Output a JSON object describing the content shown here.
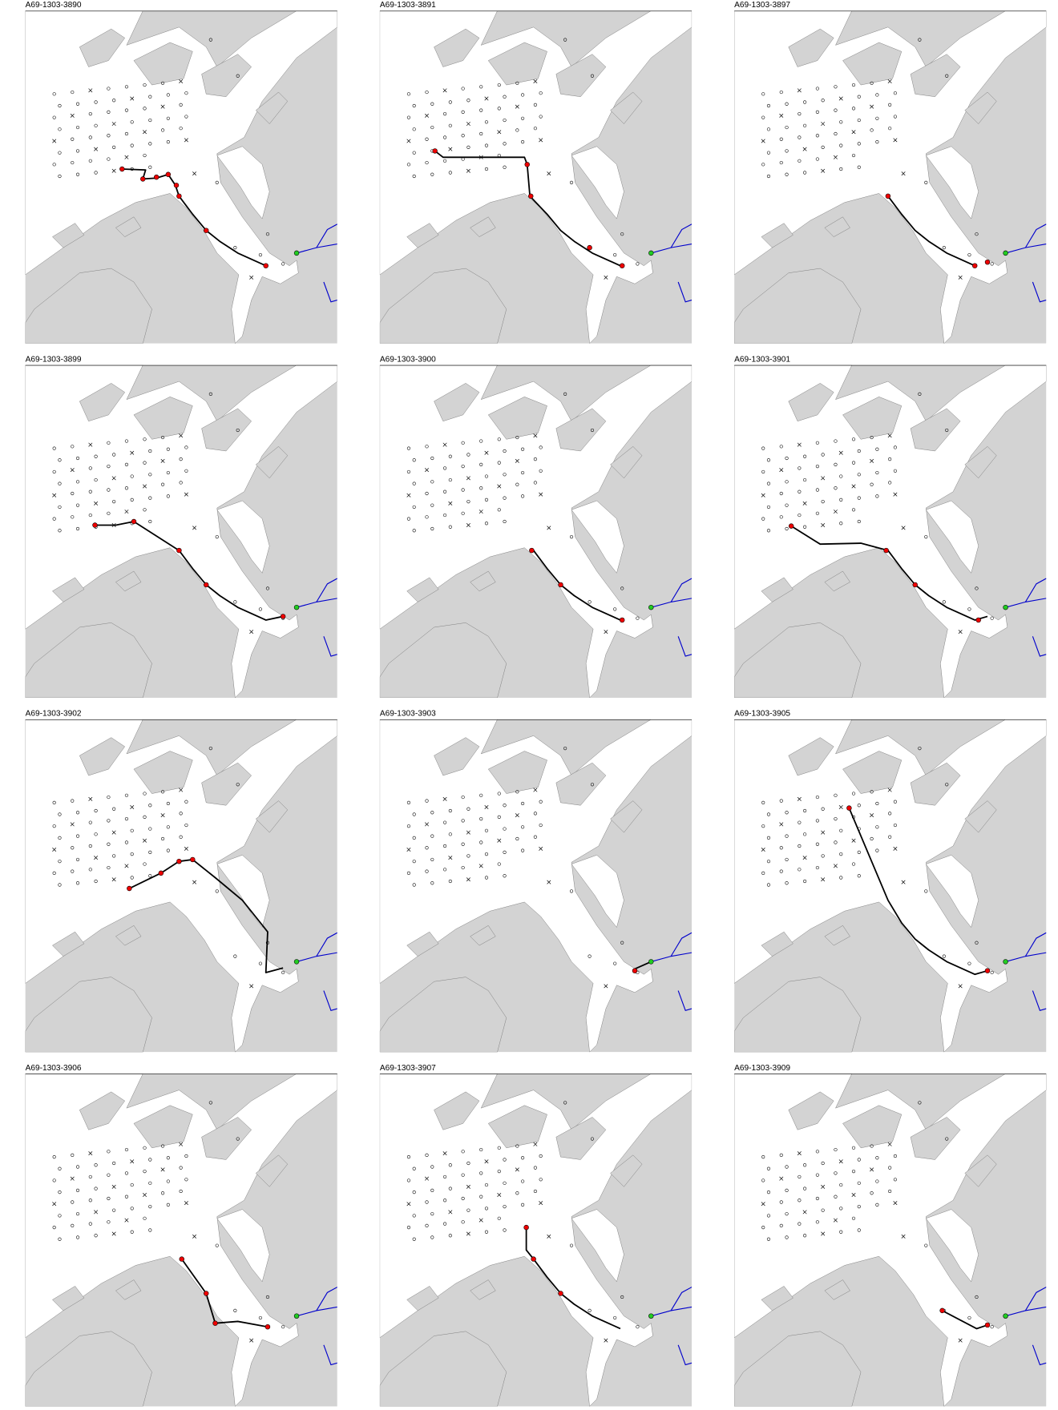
{
  "panels": [
    {
      "title": "A69-1303-3890"
    },
    {
      "title": "A69-1303-3891"
    },
    {
      "title": "A69-1303-3897"
    },
    {
      "title": "A69-1303-3899"
    },
    {
      "title": "A69-1303-3900"
    },
    {
      "title": "A69-1303-3901"
    },
    {
      "title": "A69-1303-3902"
    },
    {
      "title": "A69-1303-3903"
    },
    {
      "title": "A69-1303-3905"
    },
    {
      "title": "A69-1303-3906"
    },
    {
      "title": "A69-1303-3907"
    },
    {
      "title": "A69-1303-3909"
    }
  ]
}
